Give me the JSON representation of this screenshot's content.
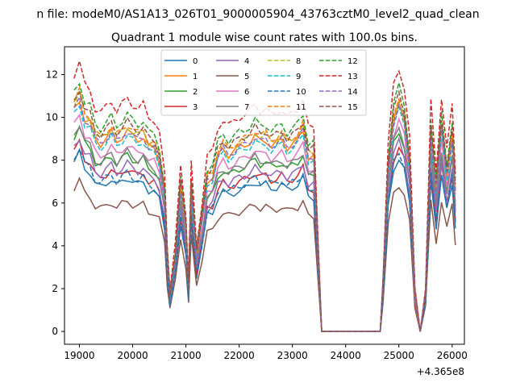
{
  "figure": {
    "suptitle": "n file: modeM0/AS1A13_026T01_9000005904_43763cztM0_level2_quad_clean",
    "offset_label": "+4.365e8"
  },
  "chart_data": {
    "type": "line",
    "title": "Quadrant 1 module wise count rates with 100.0s bins.",
    "xlabel": "",
    "ylabel": "",
    "xlim": [
      18720,
      26230
    ],
    "ylim": [
      -0.6,
      13.3
    ],
    "x_ticks": [
      19000,
      20000,
      21000,
      22000,
      23000,
      24000,
      25000,
      26000
    ],
    "y_ticks": [
      0,
      2,
      4,
      6,
      8,
      10,
      12
    ],
    "grid": false,
    "legend": {
      "placement": "top-center",
      "columns": 4
    },
    "series": [
      {
        "name": "0",
        "color": "#1f77b4",
        "dashed": false,
        "scale": 0.66
      },
      {
        "name": "1",
        "color": "#ff7f0e",
        "dashed": false,
        "scale": 0.86
      },
      {
        "name": "2",
        "color": "#2ca02c",
        "dashed": false,
        "scale": 0.76
      },
      {
        "name": "3",
        "color": "#d62728",
        "dashed": false,
        "scale": 0.7
      },
      {
        "name": "4",
        "color": "#9467bd",
        "dashed": false,
        "scale": 0.72
      },
      {
        "name": "5",
        "color": "#8c564b",
        "dashed": false,
        "scale": 0.56
      },
      {
        "name": "6",
        "color": "#e377c2",
        "dashed": false,
        "scale": 0.8
      },
      {
        "name": "7",
        "color": "#7f7f7f",
        "dashed": false,
        "scale": 0.77
      },
      {
        "name": "8",
        "color": "#bcbd22",
        "dashed": true,
        "scale": 0.88
      },
      {
        "name": "9",
        "color": "#17becf",
        "dashed": true,
        "scale": 0.84
      },
      {
        "name": "10",
        "color": "#1f77b4",
        "dashed": true,
        "scale": 0.68
      },
      {
        "name": "11",
        "color": "#ff7f0e",
        "dashed": true,
        "scale": 0.89
      },
      {
        "name": "12",
        "color": "#2ca02c",
        "dashed": true,
        "scale": 0.93
      },
      {
        "name": "13",
        "color": "#d62728",
        "dashed": true,
        "scale": 1.0
      },
      {
        "name": "14",
        "color": "#9467bd",
        "dashed": true,
        "scale": 0.86
      },
      {
        "name": "15",
        "color": "#8c564b",
        "dashed": true,
        "scale": 0.9
      }
    ],
    "base_profile": {
      "x": [
        18900,
        19000,
        19100,
        19200,
        19300,
        19400,
        19500,
        19600,
        19700,
        19800,
        19900,
        20000,
        20100,
        20200,
        20300,
        20400,
        20500,
        20600,
        20650,
        20700,
        20800,
        20900,
        21000,
        21050,
        21100,
        21200,
        21300,
        21400,
        21500,
        21600,
        21700,
        21800,
        21900,
        22000,
        22100,
        22200,
        22300,
        22400,
        22500,
        22600,
        22700,
        22800,
        22900,
        23000,
        23100,
        23200,
        23300,
        23400,
        23550,
        23600,
        24000,
        24650,
        24700,
        24800,
        24900,
        25000,
        25100,
        25200,
        25300,
        25400,
        25500,
        25600,
        25700,
        25800,
        25900,
        26000,
        26060
      ],
      "y": [
        12.0,
        12.6,
        11.5,
        11.3,
        10.4,
        10.2,
        10.5,
        10.8,
        10.3,
        10.6,
        10.9,
        10.6,
        10.4,
        10.6,
        10.0,
        9.9,
        9.3,
        7.3,
        4.0,
        2.0,
        4.0,
        7.7,
        5.5,
        2.3,
        7.8,
        4.0,
        6.0,
        8.2,
        8.4,
        9.5,
        9.9,
        9.6,
        9.8,
        10.0,
        10.1,
        10.3,
        10.6,
        10.3,
        10.4,
        10.1,
        10.2,
        10.4,
        10.0,
        10.2,
        10.4,
        10.9,
        9.5,
        9.5,
        0.0,
        0.0,
        0.0,
        0.0,
        2.5,
        8.8,
        11.5,
        12.3,
        11.4,
        9.0,
        2.0,
        0.0,
        2.0,
        10.7,
        7.5,
        11.0,
        8.5,
        10.5,
        7.5
      ]
    }
  }
}
